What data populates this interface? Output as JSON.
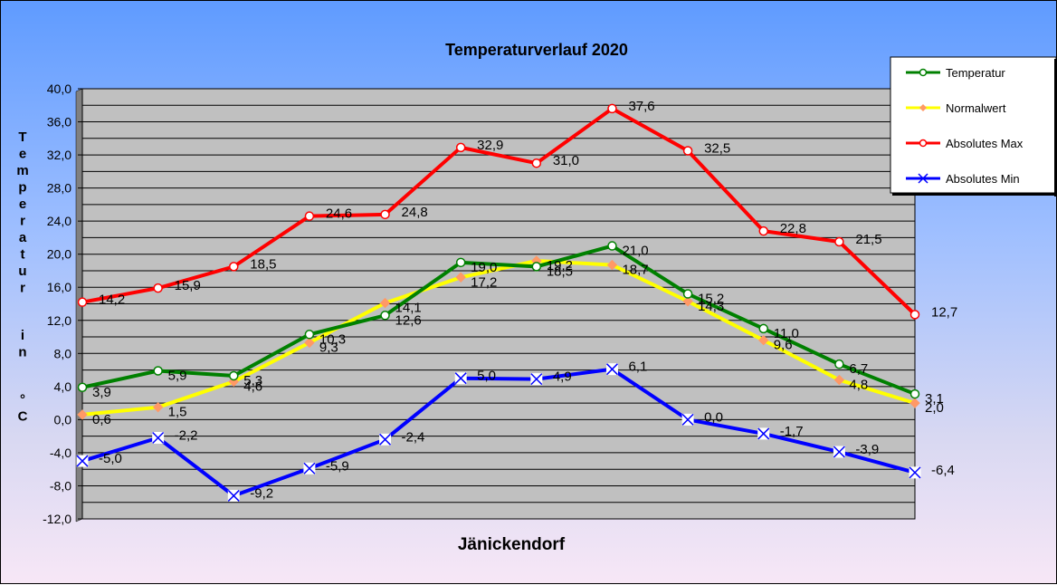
{
  "chart_data": {
    "type": "line",
    "title": "Temperaturverlauf  2020",
    "xlabel": "Jänickendorf",
    "ylabel": "T e m p e r a t u r   i n   ° C",
    "ylim": [
      -12,
      40
    ],
    "yticks": [
      "40,0",
      "36,0",
      "32,0",
      "28,0",
      "24,0",
      "20,0",
      "16,0",
      "12,0",
      "8,0",
      "4,0",
      "0,0",
      "-4,0",
      "-8,0",
      "-12,0"
    ],
    "grid": true,
    "legend_position": "top-right",
    "x": [
      1,
      2,
      3,
      4,
      5,
      6,
      7,
      8,
      9,
      10,
      11,
      12
    ],
    "series": [
      {
        "name": "Temperatur",
        "color": "#008000",
        "marker": "circle",
        "values": [
          3.9,
          5.9,
          5.3,
          10.3,
          12.6,
          19.0,
          18.5,
          21.0,
          15.2,
          11.0,
          6.7,
          3.1
        ],
        "labels": [
          "3,9",
          "5,9",
          "5,3",
          "10,3",
          "12,6",
          "19,0",
          "18,5",
          "21,0",
          "15,2",
          "11,0",
          "6,7",
          "3,1"
        ]
      },
      {
        "name": "Normalwert",
        "color": "#ffff00",
        "marker": "diamond",
        "values": [
          0.6,
          1.5,
          4.6,
          9.3,
          14.1,
          17.2,
          19.2,
          18.7,
          14.3,
          9.6,
          4.8,
          2.0
        ],
        "labels": [
          "0,6",
          "1,5",
          "4,6",
          "9,3",
          "14,1",
          "17,2",
          "19,2",
          "18,7",
          "14,3",
          "9,6",
          "4,8",
          "2,0"
        ]
      },
      {
        "name": "Absolutes Max",
        "color": "#ff0000",
        "marker": "circle",
        "values": [
          14.2,
          15.9,
          18.5,
          24.6,
          24.8,
          32.9,
          31.0,
          37.6,
          32.5,
          22.8,
          21.5,
          12.7
        ],
        "labels": [
          "14,2",
          "15,9",
          "18,5",
          "24,6",
          "24,8",
          "32,9",
          "31,0",
          "37,6",
          "32,5",
          "22,8",
          "21,5",
          "12,7"
        ]
      },
      {
        "name": "Absolutes Min",
        "color": "#0000ff",
        "marker": "x-box",
        "values": [
          -5.0,
          -2.2,
          -9.2,
          -5.9,
          -2.4,
          5.0,
          4.9,
          6.1,
          0.0,
          -1.7,
          -3.9,
          -6.4
        ],
        "labels": [
          "-5,0",
          "-2,2",
          "-9,2",
          "-5,9",
          "-2,4",
          "5,0",
          "4,9",
          "6,1",
          "0,0",
          "-1,7",
          "-3,9",
          "-6,4"
        ]
      }
    ]
  }
}
